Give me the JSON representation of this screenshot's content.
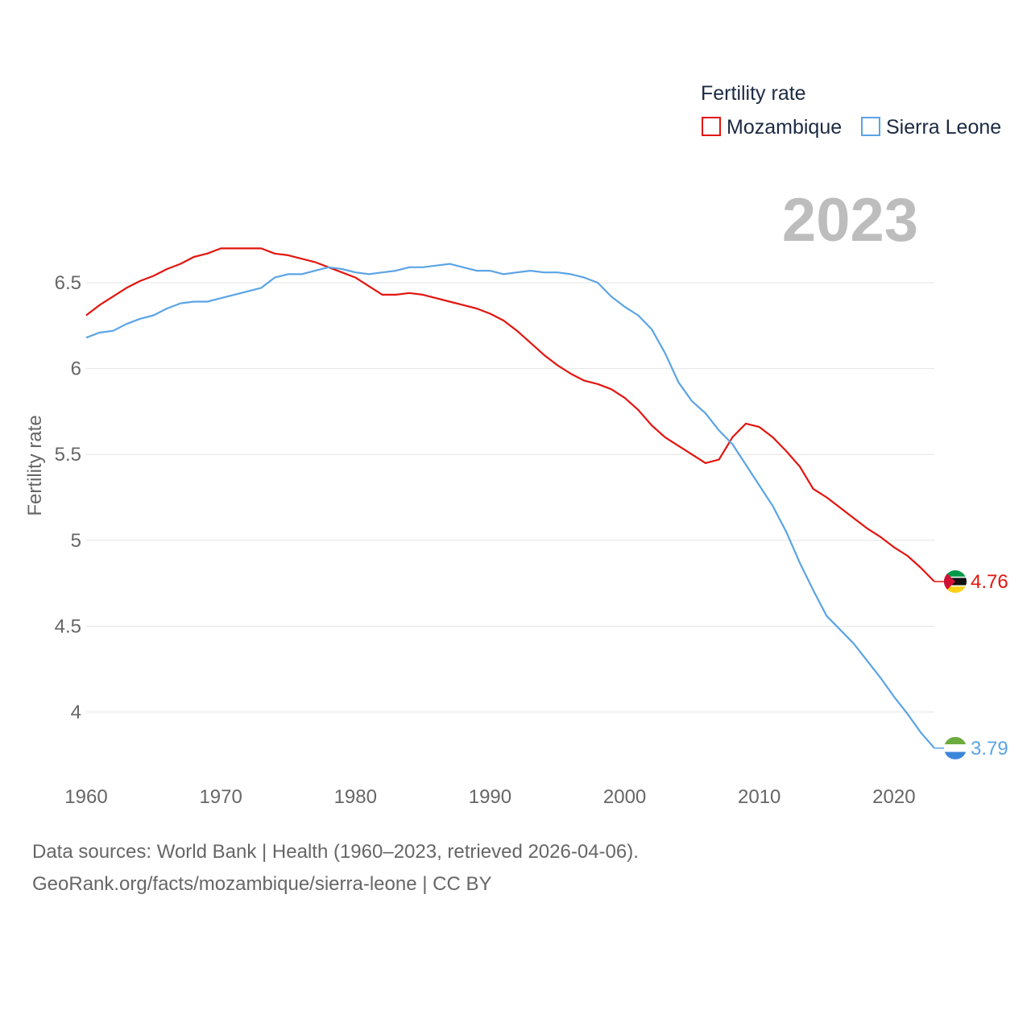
{
  "chart_data": {
    "type": "line",
    "title": "Fertility rate",
    "ylabel": "Fertility rate",
    "xlabel": "",
    "current_year": "2023",
    "x": [
      1960,
      1961,
      1962,
      1963,
      1964,
      1965,
      1966,
      1967,
      1968,
      1969,
      1970,
      1971,
      1972,
      1973,
      1974,
      1975,
      1976,
      1977,
      1978,
      1979,
      1980,
      1981,
      1982,
      1983,
      1984,
      1985,
      1986,
      1987,
      1988,
      1989,
      1990,
      1991,
      1992,
      1993,
      1994,
      1995,
      1996,
      1997,
      1998,
      1999,
      2000,
      2001,
      2002,
      2003,
      2004,
      2005,
      2006,
      2007,
      2008,
      2009,
      2010,
      2011,
      2012,
      2013,
      2014,
      2015,
      2016,
      2017,
      2018,
      2019,
      2020,
      2021,
      2022,
      2023
    ],
    "xlim": [
      1960,
      2023
    ],
    "ylim": [
      3.55,
      6.88
    ],
    "x_ticks": [
      1960,
      1970,
      1980,
      1990,
      2000,
      2010,
      2020
    ],
    "y_ticks": [
      4,
      4.5,
      5,
      5.5,
      6,
      6.5
    ],
    "y_tick_labels": [
      "4",
      "4.5",
      "5",
      "5.5",
      "6",
      "6.5"
    ],
    "legend_position": "top-right",
    "series": [
      {
        "name": "Mozambique",
        "color": "#e3150f",
        "end_label": "4.76",
        "flag": "mozambique-flag",
        "values": [
          6.31,
          6.37,
          6.42,
          6.47,
          6.51,
          6.54,
          6.58,
          6.61,
          6.65,
          6.67,
          6.7,
          6.7,
          6.7,
          6.7,
          6.67,
          6.66,
          6.64,
          6.62,
          6.59,
          6.56,
          6.53,
          6.48,
          6.43,
          6.43,
          6.44,
          6.43,
          6.41,
          6.39,
          6.37,
          6.35,
          6.32,
          6.28,
          6.22,
          6.15,
          6.08,
          6.02,
          5.97,
          5.93,
          5.91,
          5.88,
          5.83,
          5.76,
          5.67,
          5.6,
          5.55,
          5.5,
          5.45,
          5.47,
          5.6,
          5.68,
          5.66,
          5.6,
          5.52,
          5.43,
          5.3,
          5.25,
          5.19,
          5.13,
          5.07,
          5.02,
          4.96,
          4.91,
          4.84,
          4.76
        ]
      },
      {
        "name": "Sierra Leone",
        "color": "#5ba4e5",
        "end_label": "3.79",
        "flag": "sierra-leone-flag",
        "values": [
          6.18,
          6.21,
          6.22,
          6.26,
          6.29,
          6.31,
          6.35,
          6.38,
          6.39,
          6.39,
          6.41,
          6.43,
          6.45,
          6.47,
          6.53,
          6.55,
          6.55,
          6.57,
          6.59,
          6.58,
          6.56,
          6.55,
          6.56,
          6.57,
          6.59,
          6.59,
          6.6,
          6.61,
          6.59,
          6.57,
          6.57,
          6.55,
          6.56,
          6.57,
          6.56,
          6.56,
          6.55,
          6.53,
          6.5,
          6.42,
          6.36,
          6.31,
          6.23,
          6.09,
          5.92,
          5.81,
          5.74,
          5.64,
          5.56,
          5.44,
          5.32,
          5.2,
          5.05,
          4.87,
          4.71,
          4.56,
          4.48,
          4.4,
          4.3,
          4.2,
          4.09,
          3.99,
          3.88,
          3.79
        ]
      }
    ]
  },
  "footer": {
    "line1": "Data sources: World Bank | Health (1960–2023, retrieved 2026-04-06).",
    "line2": "GeoRank.org/facts/mozambique/sierra-leone | CC BY"
  }
}
